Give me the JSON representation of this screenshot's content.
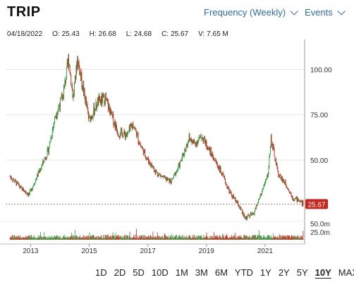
{
  "header": {
    "ticker": "TRIP",
    "frequency_label": "Frequency (Weekly)",
    "events_label": "Events"
  },
  "quote": {
    "date": "04/18/2022",
    "open_label": "O:",
    "open": "25.43",
    "high_label": "H:",
    "high": "26.68",
    "low_label": "L:",
    "low": "24.68",
    "close_label": "C:",
    "close": "25.67",
    "volume_label": "V:",
    "volume": "7.65 M"
  },
  "ranges": {
    "items": [
      "1D",
      "2D",
      "5D",
      "10D",
      "1M",
      "3M",
      "6M",
      "YTD",
      "1Y",
      "2Y",
      "5Y",
      "10Y",
      "MAX"
    ],
    "active": "10Y"
  },
  "colors": {
    "up": "#2e9e3e",
    "down": "#c8261d",
    "accent": "#2a6db5",
    "price_badge": "#c8261d"
  },
  "chart_data": {
    "type": "candlestick",
    "price_axis": {
      "ticks": [
        50,
        75,
        100
      ],
      "tick_labels": [
        "50.00",
        "75.00",
        "100.00"
      ],
      "range": [
        20,
        115
      ]
    },
    "volume_axis": {
      "tick_labels": [
        "50.0m",
        "25.0m"
      ]
    },
    "x_tick_labels": [
      "2013",
      "2015",
      "2017",
      "2019",
      "2021"
    ],
    "last_price_label": "25.67",
    "close_trend": [
      {
        "x": 2012.3,
        "y": 41
      },
      {
        "x": 2012.7,
        "y": 34
      },
      {
        "x": 2012.95,
        "y": 31
      },
      {
        "x": 2013.3,
        "y": 44
      },
      {
        "x": 2013.6,
        "y": 55
      },
      {
        "x": 2013.85,
        "y": 75
      },
      {
        "x": 2014.1,
        "y": 85
      },
      {
        "x": 2014.3,
        "y": 106
      },
      {
        "x": 2014.45,
        "y": 84
      },
      {
        "x": 2014.6,
        "y": 106
      },
      {
        "x": 2014.75,
        "y": 93
      },
      {
        "x": 2015.0,
        "y": 72
      },
      {
        "x": 2015.3,
        "y": 82
      },
      {
        "x": 2015.55,
        "y": 84
      },
      {
        "x": 2015.75,
        "y": 75
      },
      {
        "x": 2016.0,
        "y": 65
      },
      {
        "x": 2016.3,
        "y": 64
      },
      {
        "x": 2016.5,
        "y": 70
      },
      {
        "x": 2016.75,
        "y": 58
      },
      {
        "x": 2017.0,
        "y": 50
      },
      {
        "x": 2017.3,
        "y": 43
      },
      {
        "x": 2017.55,
        "y": 40
      },
      {
        "x": 2017.8,
        "y": 38
      },
      {
        "x": 2018.1,
        "y": 48
      },
      {
        "x": 2018.4,
        "y": 62
      },
      {
        "x": 2018.6,
        "y": 59
      },
      {
        "x": 2018.85,
        "y": 63
      },
      {
        "x": 2019.15,
        "y": 54
      },
      {
        "x": 2019.45,
        "y": 45
      },
      {
        "x": 2019.8,
        "y": 32
      },
      {
        "x": 2020.1,
        "y": 25
      },
      {
        "x": 2020.3,
        "y": 18
      },
      {
        "x": 2020.6,
        "y": 20
      },
      {
        "x": 2020.9,
        "y": 33
      },
      {
        "x": 2021.1,
        "y": 42
      },
      {
        "x": 2021.2,
        "y": 62
      },
      {
        "x": 2021.45,
        "y": 42
      },
      {
        "x": 2021.7,
        "y": 37
      },
      {
        "x": 2021.95,
        "y": 29
      },
      {
        "x": 2022.15,
        "y": 28
      },
      {
        "x": 2022.3,
        "y": 25.67
      }
    ]
  }
}
